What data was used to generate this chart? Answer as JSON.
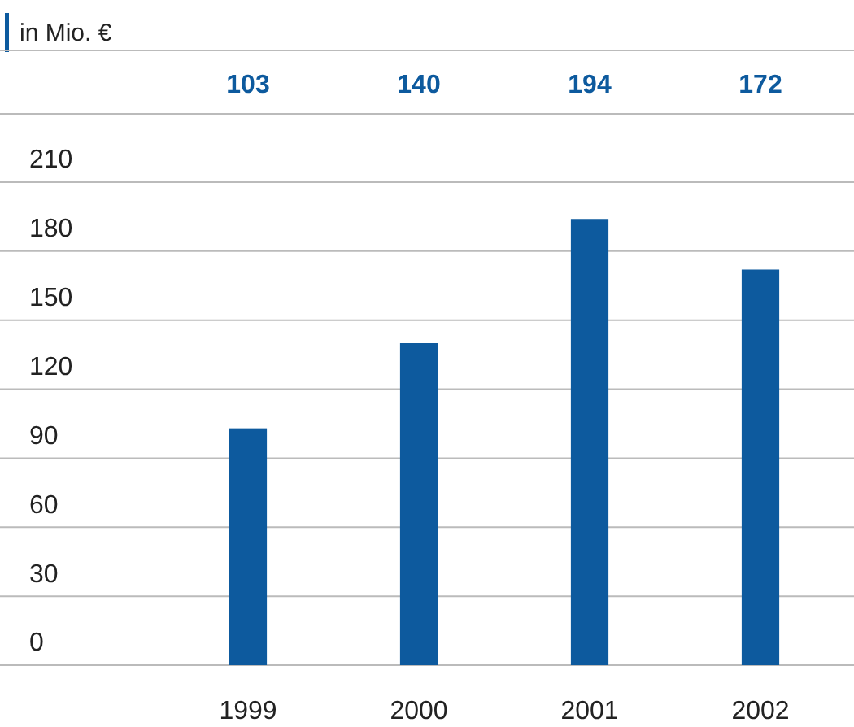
{
  "chart_data": {
    "type": "bar",
    "ylabel": "in Mio. €",
    "categories": [
      "1999",
      "2000",
      "2001",
      "2002"
    ],
    "values": [
      103,
      140,
      194,
      172
    ],
    "color": "#0d5a9e",
    "data_labels": true,
    "ylim": [
      0,
      210
    ],
    "yticks": [
      0,
      30,
      60,
      90,
      120,
      150,
      180,
      210
    ],
    "grid": "y"
  }
}
